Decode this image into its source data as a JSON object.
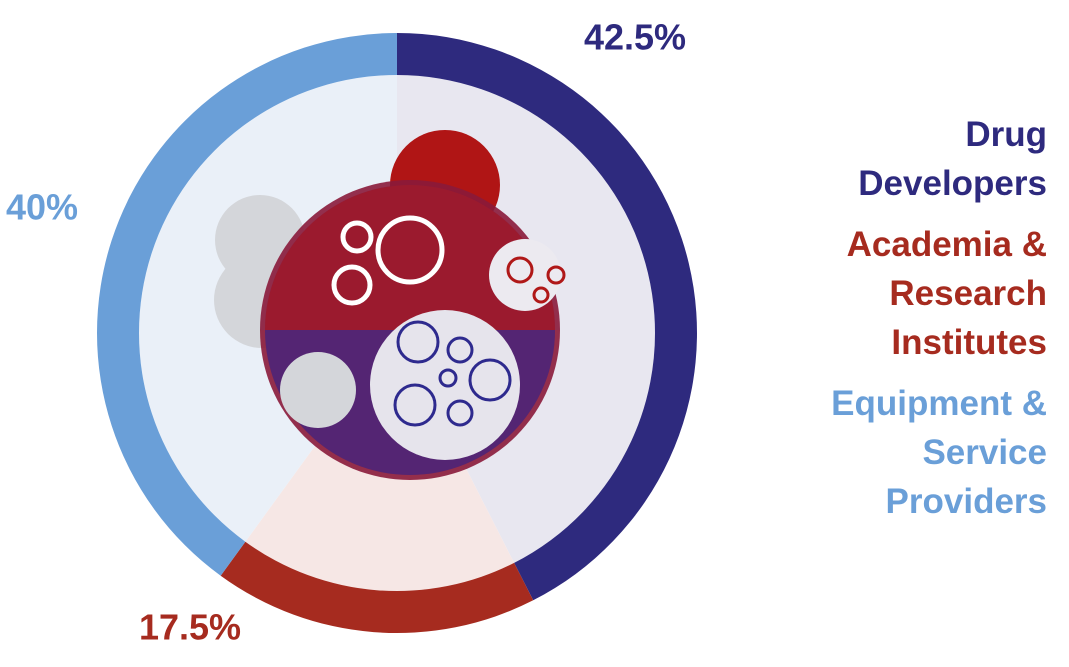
{
  "chart_data": {
    "type": "pie",
    "donut": true,
    "categories": [
      "Drug Developers",
      "Academia & Research Institutes",
      "Equipment & Service Providers"
    ],
    "values": [
      42.5,
      17.5,
      40
    ],
    "value_labels": [
      "42.5%",
      "17.5%",
      "40%"
    ],
    "colors": [
      "#2e2a7e",
      "#a62b1f",
      "#6a9fd8"
    ]
  }
}
